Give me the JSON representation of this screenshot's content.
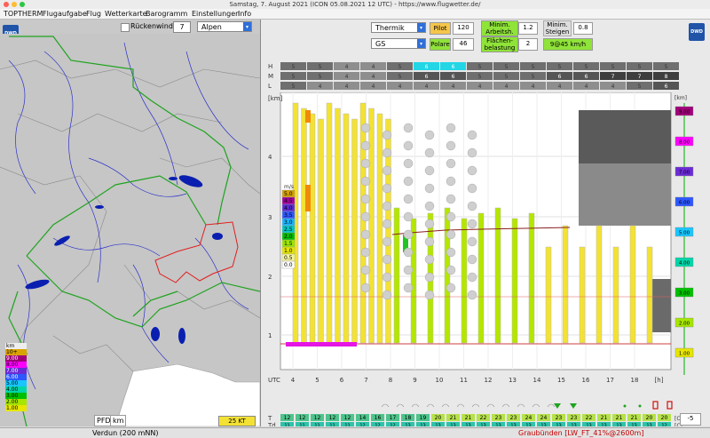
{
  "window": {
    "title": "Samstag, 7. August 2021 (ICON 05.08.2021 12 UTC) - https://www.flugwetter.de/",
    "traffic_colors": [
      "#ff5f57",
      "#febc2e",
      "#28c840"
    ]
  },
  "menu": {
    "items": [
      "TOPTHERM",
      "Flugaufgabe",
      "Flug",
      "Wetterkarte",
      "Barogramm",
      "Einstellungen",
      "Info"
    ]
  },
  "left_toolbar": {
    "rueckenwind_label": "Rückenwind",
    "rueckenwind_value": "7",
    "region_value": "Alpen"
  },
  "left_legend": {
    "unit": "km",
    "rows": [
      {
        "label": "10+",
        "color": "#d9a300"
      },
      {
        "label": "9.00",
        "color": "#a00078"
      },
      {
        "label": "8.00",
        "color": "#ff00ff"
      },
      {
        "label": "7.00",
        "color": "#6a2bd6"
      },
      {
        "label": "6.00",
        "color": "#2d57ff"
      },
      {
        "label": "5.00",
        "color": "#18c6ff"
      },
      {
        "label": "4.00",
        "color": "#00d6a8"
      },
      {
        "label": "3.00",
        "color": "#00c000"
      },
      {
        "label": "2.00",
        "color": "#a6e600"
      },
      {
        "label": "1.00",
        "color": "#e6e600"
      }
    ]
  },
  "left_bottom": {
    "pfd_label": "PFD",
    "km_label": "km",
    "kt_label": "25 KT"
  },
  "controls": {
    "type_value": "Thermik",
    "pilot_label": "Pilot",
    "pilot_value": "120",
    "min_arbeit_label": "Minim. Arbeitsh.",
    "min_arbeit_value": "1.2",
    "min_steigen_label": "Minim. Steigen",
    "min_steigen_value": "0.8",
    "glider_value": "GS",
    "polare_label": "Polare",
    "polare_value": "46",
    "flaechen_label": "Flächen-belastung",
    "flaechen_value": "2",
    "result_value": "9@45 km/h"
  },
  "chart_header_rows": {
    "H": [
      "5",
      "5",
      "4",
      "4",
      "5",
      "6",
      "6",
      "5",
      "5",
      "5",
      "5",
      "5",
      "5",
      "5",
      "5"
    ],
    "M": [
      "5",
      "5",
      "4",
      "4",
      "5",
      "6",
      "6",
      "5",
      "5",
      "5",
      "6",
      "6",
      "7",
      "7",
      "8"
    ],
    "L": [
      "5",
      "4",
      "4",
      "4",
      "4",
      "4",
      "4",
      "4",
      "4",
      "4",
      "4",
      "4",
      "4",
      "5",
      "6"
    ],
    "labels": [
      "H",
      "M",
      "L"
    ]
  },
  "chart_y_labels": [
    "[km]",
    "4",
    "3",
    "2",
    "1"
  ],
  "chart_x_labels": [
    "UTC",
    "4",
    "5",
    "6",
    "7",
    "8",
    "9",
    "10",
    "11",
    "12",
    "13",
    "14",
    "15",
    "16",
    "17",
    "18",
    "[h]"
  ],
  "ms_legend": {
    "unit": "m/s",
    "rows": [
      {
        "label": "5.0",
        "color": "#d4a000"
      },
      {
        "label": "4.5",
        "color": "#a000a0"
      },
      {
        "label": "4.0",
        "color": "#5a2bd6"
      },
      {
        "label": "3.5",
        "color": "#2d57ff"
      },
      {
        "label": "3.0",
        "color": "#18b4ff"
      },
      {
        "label": "2.5",
        "color": "#00c6c6"
      },
      {
        "label": "2.0",
        "color": "#00c000"
      },
      {
        "label": "1.5",
        "color": "#9ae600"
      },
      {
        "label": "1.0",
        "color": "#e6e600"
      },
      {
        "label": "0.5",
        "color": "#f4f4a0"
      },
      {
        "label": "0.0",
        "color": "#ffffff"
      }
    ]
  },
  "right_km_scale": {
    "unit": "[km]",
    "rows": [
      {
        "label": "9.00",
        "color": "#a00078"
      },
      {
        "label": "8.00",
        "color": "#ff00ff"
      },
      {
        "label": "7.00",
        "color": "#6a2bd6"
      },
      {
        "label": "6.00",
        "color": "#2d57ff"
      },
      {
        "label": "5.00",
        "color": "#18c6ff"
      },
      {
        "label": "4.00",
        "color": "#00d6a8"
      },
      {
        "label": "3.00",
        "color": "#00c000"
      },
      {
        "label": "2.00",
        "color": "#a6e600"
      },
      {
        "label": "1.00",
        "color": "#e6e600"
      }
    ]
  },
  "bottom_rows": {
    "T_label": "T",
    "Td_label": "Td",
    "T_values": [
      "12",
      "12",
      "12",
      "12",
      "12",
      "14",
      "16",
      "17",
      "18",
      "19",
      "20",
      "21",
      "21",
      "22",
      "23",
      "23",
      "24",
      "24",
      "23",
      "23",
      "22",
      "21",
      "21",
      "21",
      "20",
      "20"
    ],
    "Td_values": [
      "11",
      "11",
      "11",
      "11",
      "11",
      "12",
      "12",
      "12",
      "13",
      "13",
      "13",
      "13",
      "13",
      "13",
      "13",
      "13",
      "13",
      "13",
      "13",
      "13",
      "13",
      "13",
      "13",
      "13",
      "13",
      "12"
    ],
    "unit": "[C]",
    "spinner_value": "-5"
  },
  "status": {
    "left": "Verdun (200 mNN)",
    "right": "Graubünden [LW_FT_41%@2600m]"
  }
}
